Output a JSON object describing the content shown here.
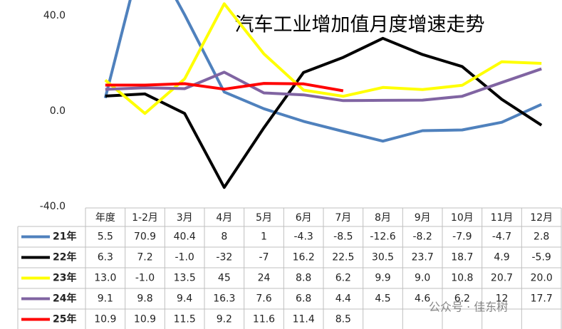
{
  "chart_data": {
    "type": "line",
    "title": "汽车工业增加值月度增速走势",
    "categories": [
      "年度",
      "1-2月",
      "3月",
      "4月",
      "5月",
      "6月",
      "7月",
      "8月",
      "9月",
      "10月",
      "11月",
      "12月"
    ],
    "ylim": [
      -40,
      40
    ],
    "yticks": [
      {
        "value": -40,
        "label": "-40.0"
      },
      {
        "value": 0,
        "label": "0.0"
      },
      {
        "value": 40,
        "label": "40.0"
      }
    ],
    "series": [
      {
        "name": "21年",
        "color": "#4f81bd",
        "values": [
          5.5,
          70.9,
          40.4,
          8,
          1,
          -4.3,
          -8.5,
          -12.6,
          -8.2,
          -7.9,
          -4.7,
          2.8
        ],
        "value_labels": [
          "5.5",
          "70.9",
          "40.4",
          "8",
          "1",
          "-4.3",
          "-8.5",
          "-12.6",
          "-8.2",
          "-7.9",
          "-4.7",
          "2.8"
        ]
      },
      {
        "name": "22年",
        "color": "#000000",
        "values": [
          6.3,
          7.2,
          -1.0,
          -32,
          -7,
          16.2,
          22.5,
          30.5,
          23.7,
          18.7,
          4.9,
          -5.9
        ],
        "value_labels": [
          "6.3",
          "7.2",
          "-1.0",
          "-32",
          "-7",
          "16.2",
          "22.5",
          "30.5",
          "23.7",
          "18.7",
          "4.9",
          "-5.9"
        ]
      },
      {
        "name": "23年",
        "color": "#ffff00",
        "values": [
          13.0,
          -1.0,
          13.5,
          45,
          24,
          8.8,
          6.2,
          9.9,
          9.0,
          10.8,
          20.7,
          20.0
        ],
        "value_labels": [
          "13.0",
          "-1.0",
          "13.5",
          "45",
          "24",
          "8.8",
          "6.2",
          "9.9",
          "9.0",
          "10.8",
          "20.7",
          "20.0"
        ]
      },
      {
        "name": "24年",
        "color": "#8064a2",
        "values": [
          9.1,
          9.8,
          9.4,
          16.3,
          7.6,
          6.8,
          4.4,
          4.5,
          4.6,
          6.2,
          12,
          17.7
        ],
        "value_labels": [
          "9.1",
          "9.8",
          "9.4",
          "16.3",
          "7.6",
          "6.8",
          "4.4",
          "4.5",
          "4.6",
          "6.2",
          "12",
          "17.7"
        ]
      },
      {
        "name": "25年",
        "color": "#ff0000",
        "values": [
          10.9,
          10.9,
          11.5,
          9.2,
          11.6,
          11.4,
          8.5,
          null,
          null,
          null,
          null,
          null
        ],
        "value_labels": [
          "10.9",
          "10.9",
          "11.5",
          "9.2",
          "11.6",
          "11.4",
          "8.5",
          null,
          null,
          null,
          null,
          null
        ]
      }
    ],
    "watermark": "公众号 · 佳东树"
  }
}
